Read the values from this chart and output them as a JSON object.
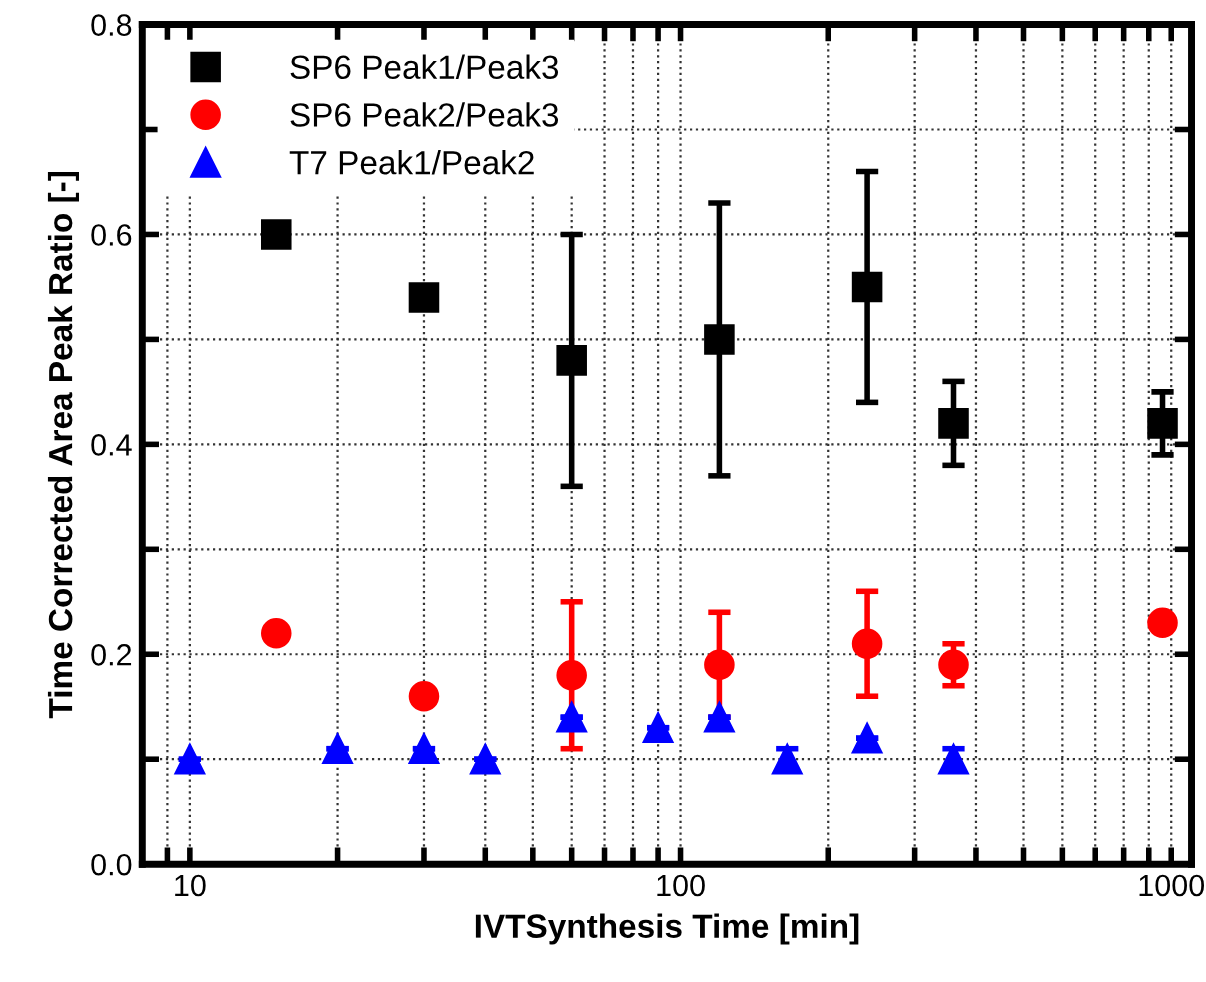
{
  "chart_data": {
    "type": "scatter",
    "xlabel": "IVTSynthesis Time [min]",
    "ylabel": "Time Corrected Area Peak Ratio [-]",
    "log": "x",
    "grid": true,
    "legend": "top left",
    "xlim": [
      8,
      1100
    ],
    "xticks": [
      {
        "value": 9,
        "label": null
      },
      10,
      {
        "value": 20,
        "label": null
      },
      {
        "value": 30,
        "label": null
      },
      {
        "value": 40,
        "label": null
      },
      {
        "value": 50,
        "label": null
      },
      {
        "value": 60,
        "label": null
      },
      {
        "value": 70,
        "label": null
      },
      {
        "value": 80,
        "label": null
      },
      {
        "value": 90,
        "label": null
      },
      100,
      {
        "value": 200,
        "label": null
      },
      {
        "value": 300,
        "label": null
      },
      {
        "value": 400,
        "label": null
      },
      {
        "value": 500,
        "label": null
      },
      {
        "value": 600,
        "label": null
      },
      {
        "value": 700,
        "label": null
      },
      {
        "value": 800,
        "label": null
      },
      {
        "value": 900,
        "label": null
      },
      1000
    ],
    "ylim": [
      0,
      0.8
    ],
    "yticks": [
      {
        "value": 0,
        "label": "0.0"
      },
      {
        "value": 0.1,
        "label": null
      },
      0.2,
      {
        "value": 0.3,
        "label": null
      },
      0.4,
      {
        "value": 0.5,
        "label": null
      },
      0.6,
      {
        "value": 0.7,
        "label": null
      },
      0.8
    ],
    "series": [
      {
        "name": "SP6 Peak1/Peak3",
        "color": "#000000",
        "marker": "square",
        "x": [
          15,
          30,
          60,
          120,
          240,
          360,
          960
        ],
        "values": [
          0.6,
          0.54,
          0.48,
          0.5,
          0.55,
          0.42,
          0.42
        ],
        "errors": [
          null,
          null,
          0.12,
          0.13,
          0.11,
          0.04,
          0.03
        ]
      },
      {
        "name": "SP6 Peak2/Peak3",
        "color": "#ff0000",
        "marker": "circle",
        "x": [
          15,
          30,
          60,
          120,
          240,
          360,
          960
        ],
        "values": [
          0.22,
          0.16,
          0.18,
          0.19,
          0.21,
          0.19,
          0.23
        ],
        "errors": [
          null,
          null,
          0.07,
          0.05,
          0.05,
          0.02,
          null
        ]
      },
      {
        "name": "T7 Peak1/Peak2",
        "color": "#0000ff",
        "marker": "triangle",
        "x": [
          10,
          20,
          30,
          40,
          60,
          90,
          120,
          165,
          240,
          360
        ],
        "values": [
          0.1,
          0.11,
          0.11,
          0.1,
          0.14,
          0.13,
          0.14,
          0.1,
          0.12,
          0.1
        ],
        "errors": [
          null,
          null,
          null,
          null,
          null,
          null,
          null,
          0.01,
          null,
          0.01
        ]
      }
    ]
  }
}
